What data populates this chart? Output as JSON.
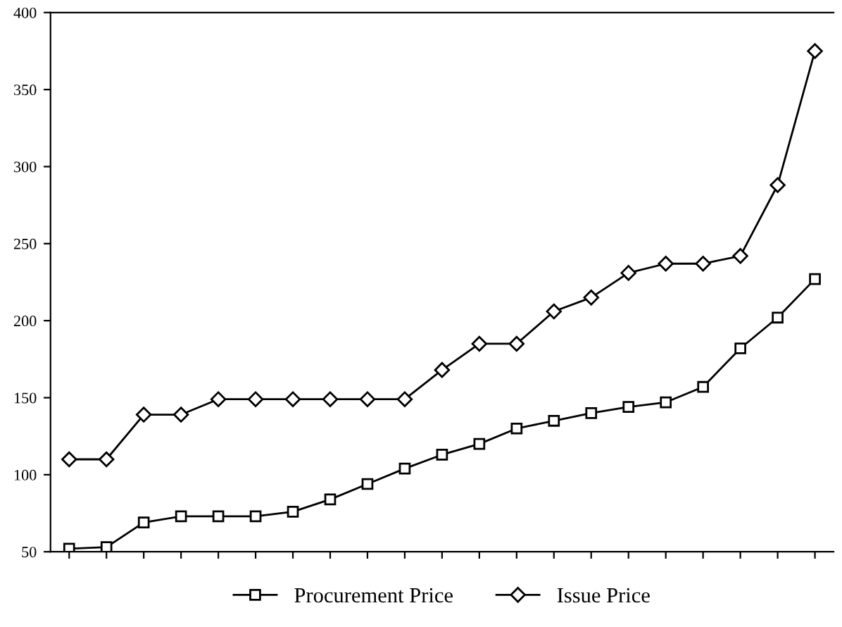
{
  "chart_data": {
    "type": "line",
    "categories": [
      null,
      null,
      null,
      null,
      null,
      null,
      null,
      null,
      null,
      null,
      null,
      null,
      null,
      null,
      null,
      null,
      null,
      null,
      null,
      null,
      null
    ],
    "series": [
      {
        "name": "Procurement Price",
        "color": "#000000",
        "marker": "square",
        "values": [
          52,
          53,
          69,
          73,
          73,
          73,
          76,
          84,
          94,
          104,
          113,
          120,
          130,
          135,
          140,
          144,
          147,
          157,
          182,
          202,
          227
        ]
      },
      {
        "name": "Issue Price",
        "color": "#000000",
        "marker": "diamond",
        "values": [
          110,
          110,
          139,
          139,
          149,
          149,
          149,
          149,
          149,
          149,
          168,
          185,
          185,
          206,
          215,
          231,
          237,
          237,
          242,
          288,
          375
        ]
      }
    ],
    "ylim": [
      50,
      400
    ],
    "yticks": [
      50,
      100,
      150,
      200,
      250,
      300,
      350,
      400
    ],
    "tick_labels": "y",
    "grid": false,
    "legend": "bottom",
    "line_style": "solid"
  }
}
